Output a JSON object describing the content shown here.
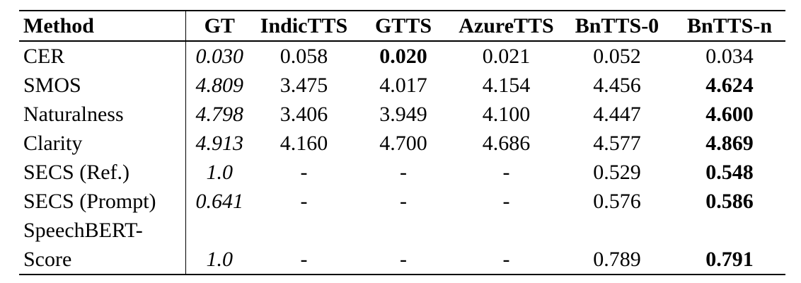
{
  "colors": {
    "background": "#ffffff",
    "text": "#000000",
    "rule": "#000000"
  },
  "table": {
    "columns": [
      {
        "label": "Method"
      },
      {
        "label": "GT"
      },
      {
        "label": "IndicTTS"
      },
      {
        "label": "GTTS"
      },
      {
        "label": "AzureTTS"
      },
      {
        "label": "BnTTS-0"
      },
      {
        "label": "BnTTS-n"
      }
    ],
    "rows": [
      {
        "method_lines": [
          "CER"
        ],
        "cells": [
          {
            "text": "0.030",
            "italic": true
          },
          {
            "text": "0.058"
          },
          {
            "text": "0.020",
            "bold": true
          },
          {
            "text": "0.021"
          },
          {
            "text": "0.052"
          },
          {
            "text": "0.034"
          }
        ]
      },
      {
        "method_lines": [
          "SMOS"
        ],
        "cells": [
          {
            "text": "4.809",
            "italic": true
          },
          {
            "text": "3.475"
          },
          {
            "text": "4.017"
          },
          {
            "text": "4.154"
          },
          {
            "text": "4.456"
          },
          {
            "text": "4.624",
            "bold": true
          }
        ]
      },
      {
        "method_lines": [
          "Naturalness"
        ],
        "cells": [
          {
            "text": "4.798",
            "italic": true
          },
          {
            "text": "3.406"
          },
          {
            "text": "3.949"
          },
          {
            "text": "4.100"
          },
          {
            "text": "4.447"
          },
          {
            "text": "4.600",
            "bold": true
          }
        ]
      },
      {
        "method_lines": [
          "Clarity"
        ],
        "cells": [
          {
            "text": "4.913",
            "italic": true
          },
          {
            "text": "4.160"
          },
          {
            "text": "4.700"
          },
          {
            "text": "4.686"
          },
          {
            "text": "4.577"
          },
          {
            "text": "4.869",
            "bold": true
          }
        ]
      },
      {
        "method_lines": [
          "SECS (Ref.)"
        ],
        "cells": [
          {
            "text": "1.0",
            "italic": true
          },
          {
            "text": "-"
          },
          {
            "text": "-"
          },
          {
            "text": "-"
          },
          {
            "text": "0.529"
          },
          {
            "text": "0.548",
            "bold": true
          }
        ]
      },
      {
        "method_lines": [
          "SECS (Prompt)"
        ],
        "cells": [
          {
            "text": "0.641",
            "italic": true
          },
          {
            "text": "-"
          },
          {
            "text": "-"
          },
          {
            "text": "-"
          },
          {
            "text": "0.576"
          },
          {
            "text": "0.586",
            "bold": true
          }
        ]
      },
      {
        "method_lines": [
          "SpeechBERT-",
          "Score"
        ],
        "tall": true,
        "cells": [
          {
            "text": "1.0",
            "italic": true
          },
          {
            "text": "-"
          },
          {
            "text": "-"
          },
          {
            "text": "-"
          },
          {
            "text": "0.789"
          },
          {
            "text": "0.791",
            "bold": true
          }
        ]
      }
    ]
  }
}
